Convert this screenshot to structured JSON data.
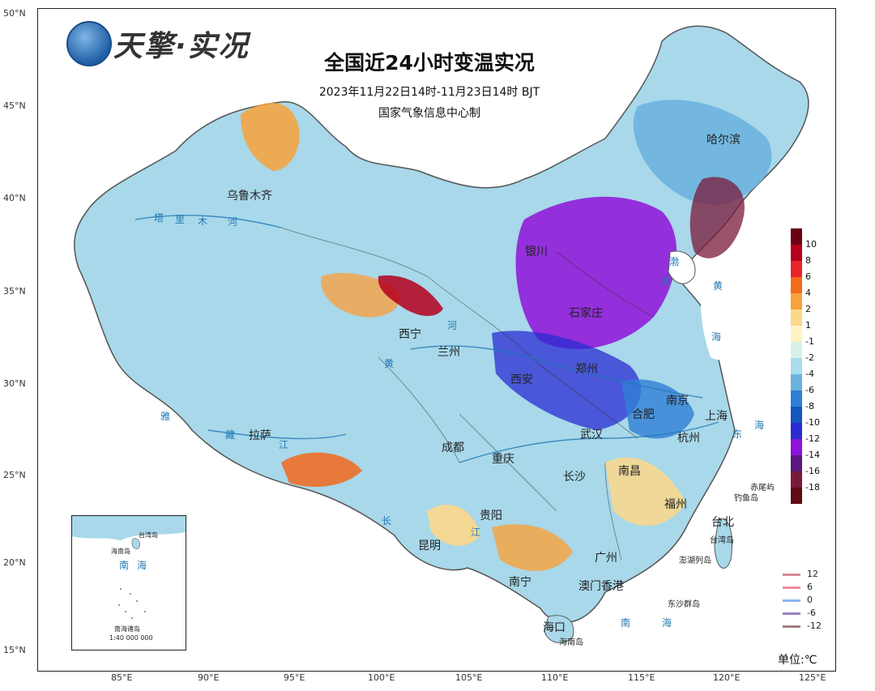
{
  "header": {
    "logo_text": "天擎·实况",
    "title": "全国近24小时变温实况",
    "subtitle": "2023年11月22日14时-11月23日14时  BJT",
    "maker": "国家气象信息中心制"
  },
  "axes": {
    "lat_labels": [
      "50°N",
      "45°N",
      "40°N",
      "35°N",
      "30°N",
      "25°N",
      "20°N",
      "15°N"
    ],
    "lon_labels": [
      "85°E",
      "90°E",
      "95°E",
      "100°E",
      "105°E",
      "110°E",
      "115°E",
      "120°E",
      "125°E"
    ]
  },
  "legend": {
    "ticks": [
      "10",
      "8",
      "6",
      "4",
      "2",
      "1",
      "-1",
      "-2",
      "-4",
      "-6",
      "-8",
      "-10",
      "-12",
      "-14",
      "-16",
      "-18"
    ],
    "colors": [
      "#6b0014",
      "#b5001c",
      "#e8262a",
      "#f26a1b",
      "#f8a23a",
      "#fcd889",
      "#fff3c2",
      "#d9f2e9",
      "#a9dcec",
      "#6ab2de",
      "#2f7fd6",
      "#1357c0",
      "#2a2cd2",
      "#8f12d8",
      "#5b1880",
      "#7a1a3a",
      "#5e0b14"
    ],
    "isolines": [
      {
        "label": "12",
        "color": "#d98a9a"
      },
      {
        "label": "6",
        "color": "#f08f9a"
      },
      {
        "label": "0",
        "color": "#8db6f0"
      },
      {
        "label": "-6",
        "color": "#9b7fc7"
      },
      {
        "label": "-12",
        "color": "#a08080"
      }
    ],
    "unit": "单位:℃"
  },
  "places": {
    "cities": [
      "乌鲁木齐",
      "哈尔滨",
      "西宁",
      "兰州",
      "西安",
      "郑州",
      "南京",
      "合肥",
      "上海",
      "杭州",
      "武汉",
      "成都",
      "重庆",
      "长沙",
      "南昌",
      "福州",
      "台北",
      "贵阳",
      "昆明",
      "广州",
      "南宁",
      "澳门",
      "香港",
      "海口",
      "拉萨",
      "银川",
      "石家庄"
    ],
    "seas": [
      "渤",
      "海",
      "黄",
      "海",
      "东",
      "海",
      "南",
      "海"
    ],
    "rivers": [
      "塔",
      "里",
      "木",
      "河",
      "黄",
      "河",
      "长",
      "江",
      "雅",
      "藏",
      "江"
    ],
    "islands": [
      "赤尾屿",
      "钓鱼岛",
      "台湾岛",
      "澎湖列岛",
      "东沙群岛",
      "海南岛"
    ]
  },
  "inset": {
    "labels": [
      "台湾岛",
      "海南岛",
      "南",
      "海",
      "南海诸岛"
    ],
    "scale": "1:40 000 000"
  }
}
